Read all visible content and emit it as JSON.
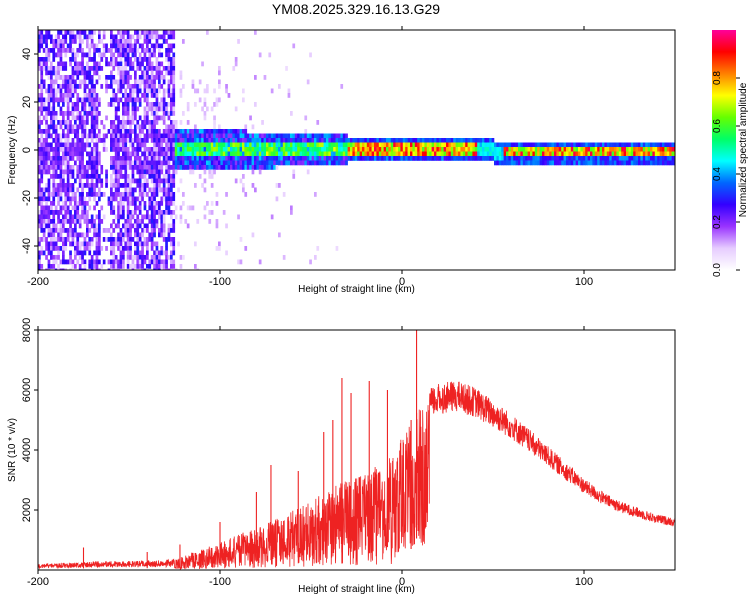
{
  "title": "YM08.2025.329.16.13.G29",
  "chart_data": [
    {
      "type": "heatmap",
      "xlabel": "Height of straight line (km)",
      "ylabel": "Frequency (Hz)",
      "xlim": [
        -200,
        150
      ],
      "ylim": [
        -50,
        50
      ],
      "xticks": [
        -200,
        -100,
        0,
        100
      ],
      "xtick_labels": [
        "-200",
        "-100",
        "0",
        "100"
      ],
      "yticks": [
        -40,
        -20,
        0,
        20,
        40
      ],
      "ytick_labels": [
        "-40",
        "-20",
        "0",
        "20",
        "40"
      ],
      "colorbar": {
        "label": "Normalized spectral amplitude",
        "range": [
          0,
          1
        ],
        "ticks": [
          0.0,
          0.2,
          0.4,
          0.6,
          0.8
        ],
        "tick_labels": [
          "0.0",
          "0.2",
          "0.4",
          "0.6",
          "0.8"
        ],
        "colors": [
          "#ffffff",
          "#e6ccff",
          "#9933ff",
          "#3300ff",
          "#0066ff",
          "#00ffff",
          "#00ff66",
          "#66ff00",
          "#ffff00",
          "#ff8000",
          "#ff0000",
          "#ff0099"
        ]
      },
      "regions": [
        {
          "x_range": [
            -200,
            -125
          ],
          "f_range": [
            -50,
            50
          ],
          "amplitude": 0.15,
          "description": "broadband noise"
        },
        {
          "x_range": [
            -125,
            -30
          ],
          "f_range": [
            -10,
            10
          ],
          "amplitude": 0.35,
          "description": "low-frequency energy"
        },
        {
          "x_range": [
            -30,
            150
          ],
          "f_range": [
            -2,
            3
          ],
          "amplitude": 0.85,
          "description": "narrow band near 0 Hz"
        }
      ]
    },
    {
      "type": "line",
      "xlabel": "Height of straight line (km)",
      "ylabel": "SNR (10 * v/v)",
      "xlim": [
        -200,
        150
      ],
      "ylim": [
        0,
        8000
      ],
      "xticks": [
        -200,
        -100,
        0,
        100
      ],
      "xtick_labels": [
        "-200",
        "-100",
        "0",
        "100"
      ],
      "yticks": [
        2000,
        4000,
        6000,
        8000
      ],
      "ytick_labels": [
        "2000",
        "4000",
        "6000",
        "8000"
      ],
      "line_color": "#ee2222",
      "envelope": {
        "x": [
          -200,
          -180,
          -160,
          -140,
          -125,
          -110,
          -100,
          -90,
          -80,
          -70,
          -60,
          -50,
          -45,
          -40,
          -35,
          -30,
          -25,
          -20,
          -15,
          -10,
          -5,
          0,
          5,
          10,
          20,
          30,
          40,
          50,
          60,
          70,
          80,
          90,
          100,
          110,
          120,
          130,
          140,
          150
        ],
        "y": [
          200,
          250,
          300,
          300,
          350,
          700,
          900,
          1200,
          1400,
          1700,
          2000,
          2300,
          2500,
          2800,
          2900,
          3000,
          3100,
          3300,
          3500,
          3700,
          4000,
          4400,
          5000,
          5400,
          5700,
          5800,
          5600,
          5200,
          4800,
          4300,
          3800,
          3300,
          2800,
          2400,
          2100,
          1900,
          1700,
          1600
        ]
      },
      "spikes": [
        {
          "x": -175,
          "y": 750
        },
        {
          "x": -140,
          "y": 600
        },
        {
          "x": -122,
          "y": 850
        },
        {
          "x": -100,
          "y": 1600
        },
        {
          "x": -80,
          "y": 2600
        },
        {
          "x": -72,
          "y": 3500
        },
        {
          "x": -57,
          "y": 3300
        },
        {
          "x": -43,
          "y": 4600
        },
        {
          "x": -38,
          "y": 5000
        },
        {
          "x": -33,
          "y": 6400
        },
        {
          "x": -28,
          "y": 5900
        },
        {
          "x": -18,
          "y": 6300
        },
        {
          "x": -8,
          "y": 6000
        },
        {
          "x": 8,
          "y": 8000
        }
      ],
      "dips": [
        {
          "x": 5,
          "y": 700
        },
        {
          "x": 8,
          "y": 1500
        }
      ]
    }
  ]
}
